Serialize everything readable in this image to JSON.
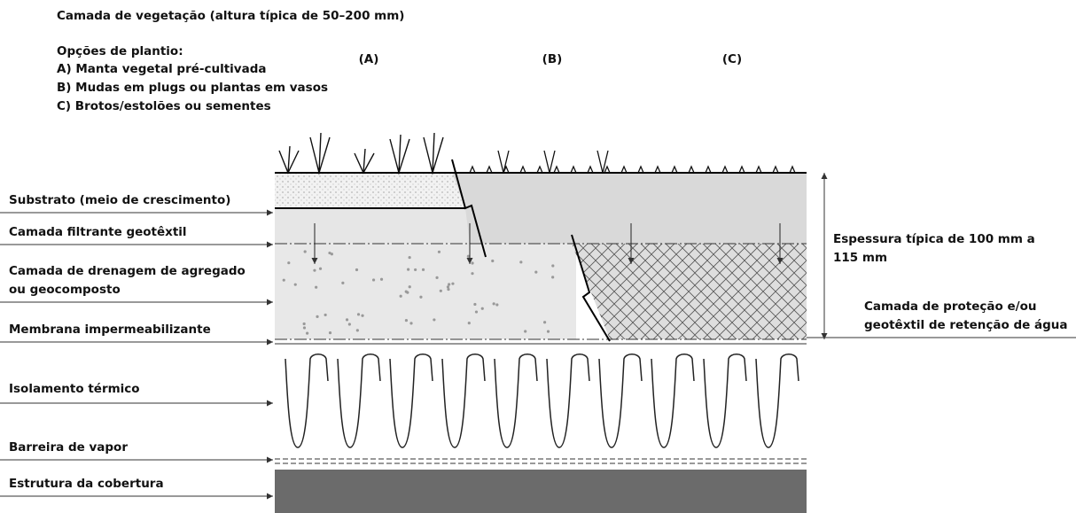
{
  "title": "Camada de vegetação (altura típica de 50–200 mm)",
  "planting": {
    "heading": "Opções de plantio:",
    "options": [
      "A) Manta vegetal pré-cultivada",
      "B) Mudas em plugs ou plantas em vasos",
      "C) Brotos/estolões ou sementes"
    ]
  },
  "columns": [
    "(A)",
    "(B)",
    "(C)"
  ],
  "layers": [
    {
      "lines": [
        "Substrato (meio de crescimento)"
      ]
    },
    {
      "lines": [
        "Camada filtrante geotêxtil"
      ]
    },
    {
      "lines": [
        "Camada de drenagem de agregado",
        "ou geocomposto"
      ]
    },
    {
      "lines": [
        "Membrana impermeabilizante"
      ]
    },
    {
      "lines": [
        "Isolamento térmico"
      ]
    },
    {
      "lines": [
        "Barreira de vapor"
      ]
    },
    {
      "lines": [
        "Estrutura da cobertura"
      ]
    }
  ],
  "thickness": {
    "lines": [
      "Espessura típica de 100 mm a",
      "115 mm"
    ]
  },
  "protection": {
    "lines": [
      "Camada de proteção e/ou",
      "geotêxtil de retenção de água"
    ]
  }
}
